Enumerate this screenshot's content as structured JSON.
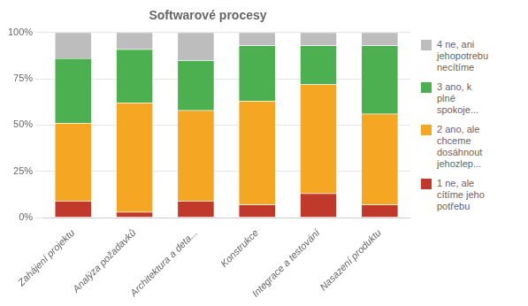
{
  "chart_data": {
    "type": "bar",
    "title": "Softwarové procesy",
    "categories": [
      "Zahájení projektu",
      "Analýza požadavků",
      "Architektura a deta...",
      "Konstrukce",
      "Integrace a testování",
      "Nasazení produktu"
    ],
    "series": [
      {
        "name": "1 ne, ale\ncítíme jeho\npotřebu",
        "color": "#c0392b",
        "values": [
          9,
          3,
          9,
          7,
          13,
          7
        ]
      },
      {
        "name": "2 ano, ale\nchceme\ndosáhnout\njehozlep...",
        "color": "#f5a623",
        "values": [
          42,
          59,
          49,
          56,
          59,
          49
        ]
      },
      {
        "name": "3 ano, k\nplné\nspokoje...",
        "color": "#4caf50",
        "values": [
          35,
          29,
          27,
          30,
          21,
          37
        ]
      },
      {
        "name": "4 ne, ani\njehopotrebu\nnecítíme",
        "color": "#bdbdbd",
        "values": [
          14,
          9,
          15,
          7,
          7,
          7
        ]
      }
    ],
    "stacked": true,
    "ylim": [
      0,
      100
    ],
    "yticks": [
      {
        "value": 0,
        "label": "0%"
      },
      {
        "value": 25,
        "label": "25%"
      },
      {
        "value": 50,
        "label": "50%"
      },
      {
        "value": 75,
        "label": "75%"
      },
      {
        "value": 100,
        "label": "100%"
      }
    ],
    "grid": "y",
    "legend": "right"
  }
}
